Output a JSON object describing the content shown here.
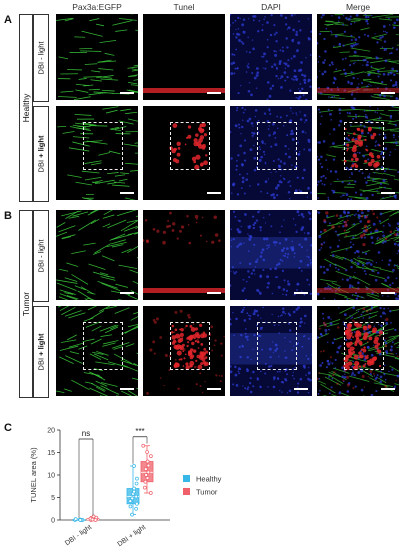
{
  "panels": {
    "a": "A",
    "b": "B",
    "c": "C"
  },
  "columns": [
    "Pax3a:EGFP",
    "Tunel",
    "DAPI",
    "Merge"
  ],
  "groups": {
    "healthy": "Healthy",
    "tumor": "Tumor"
  },
  "rows": {
    "minus": "DBI - light",
    "plus_prefix": "DBI ",
    "plus_bold": "+ light"
  },
  "colors": {
    "green": "#39c43a",
    "red": "#e0262b",
    "blue": "#2f3fe0",
    "healthy": "#36b7e8",
    "tumor": "#f0606a"
  },
  "chart_data": {
    "type": "box",
    "ylabel": "TUNEL area (%)",
    "categories": [
      "DBI - light",
      "DBI + light"
    ],
    "ylim": [
      0,
      20
    ],
    "yticks": [
      0,
      5,
      10,
      15,
      20
    ],
    "series": [
      {
        "name": "Healthy",
        "boxes": [
          {
            "min": 0,
            "q1": 0,
            "median": 0,
            "q3": 0.1,
            "max": 0.2,
            "points": [
              0,
              0,
              0.1,
              0,
              0.1,
              0.2,
              0
            ]
          },
          {
            "min": 1.2,
            "q1": 3.6,
            "median": 5.2,
            "q3": 7.0,
            "max": 12.0,
            "points": [
              1.2,
              2.5,
              3,
              3.6,
              4.2,
              4.8,
              5.2,
              5.8,
              6.3,
              7.0,
              8.1,
              9.2,
              12.0
            ]
          }
        ]
      },
      {
        "name": "Tumor",
        "boxes": [
          {
            "min": 0,
            "q1": 0,
            "median": 0.1,
            "q3": 0.3,
            "max": 0.8,
            "points": [
              0,
              0.1,
              0.2,
              0.3,
              0.5,
              0.8,
              0,
              0.1
            ]
          },
          {
            "min": 6.0,
            "q1": 8.5,
            "median": 10.6,
            "q3": 13.0,
            "max": 16.5,
            "points": [
              6.0,
              7.2,
              8.5,
              9.3,
              10.0,
              10.6,
              11.3,
              12.1,
              13.0,
              14.2,
              15.1,
              16.5
            ]
          }
        ]
      }
    ],
    "annotations": [
      {
        "category": "DBI - light",
        "text": "ns"
      },
      {
        "category": "DBI + light",
        "text": "***"
      }
    ],
    "legend": {
      "position": "right",
      "entries": [
        "Healthy",
        "Tumor"
      ]
    }
  }
}
